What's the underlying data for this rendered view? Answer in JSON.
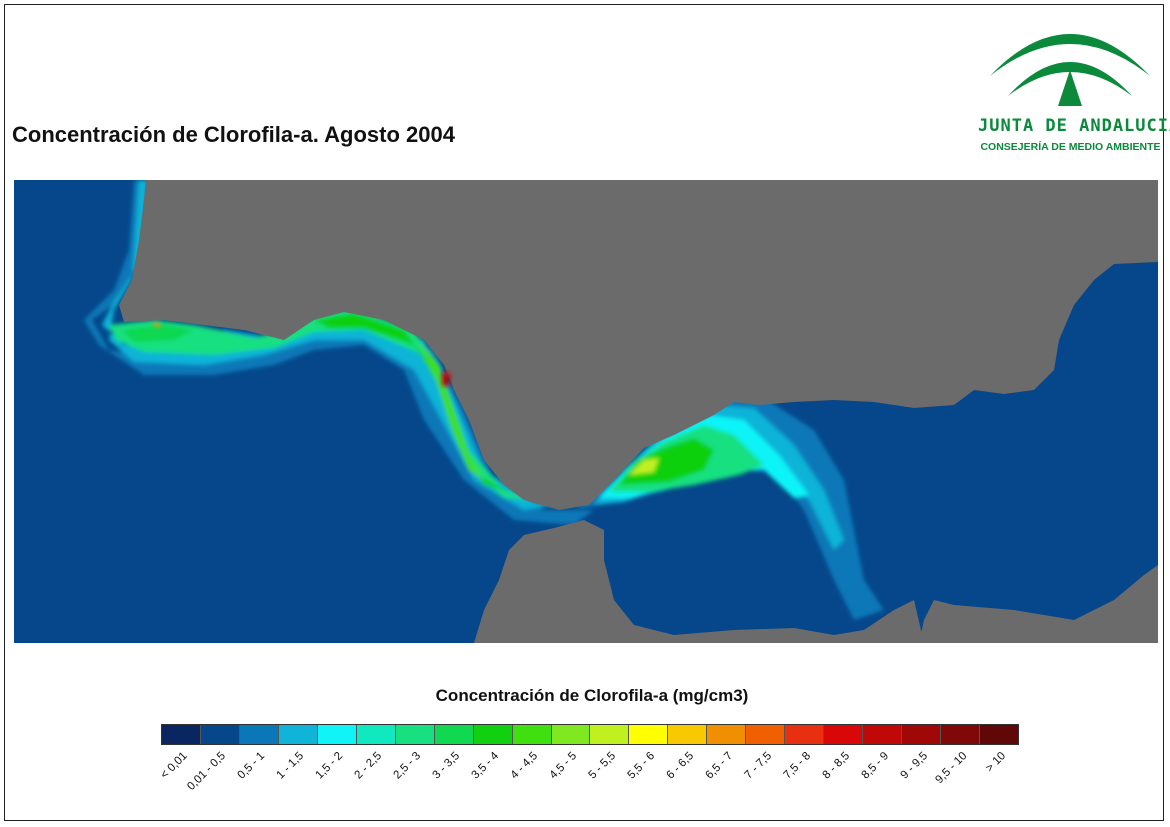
{
  "title": "Concentración de Clorofila-a. Agosto 2004",
  "logo": {
    "name": "JUNTA DE ANDALUCIA",
    "subtitle": "CONSEJERÍA DE MEDIO AMBIENTE",
    "color": "#0a8a3a"
  },
  "map": {
    "sea_color": "#05478a",
    "land_color": "#6b6b6b",
    "icon": "chlorophyll-concentration-map"
  },
  "legend": {
    "title": "Concentración de Clorofila-a (mg/cm3)",
    "classes": [
      {
        "label": "< 0,01",
        "color": "#0a2660"
      },
      {
        "label": "0,01 - 0,5",
        "color": "#05478a"
      },
      {
        "label": "0,5 - 1",
        "color": "#0a78b8"
      },
      {
        "label": "1 - 1,5",
        "color": "#10b4d8"
      },
      {
        "label": "1,5 - 2",
        "color": "#10f4f8"
      },
      {
        "label": "2 - 2,5",
        "color": "#10e8c0"
      },
      {
        "label": "2,5 - 3",
        "color": "#18e080"
      },
      {
        "label": "3 - 3,5",
        "color": "#10d850"
      },
      {
        "label": "3,5 - 4",
        "color": "#10d010"
      },
      {
        "label": "4 - 4,5",
        "color": "#40e010"
      },
      {
        "label": "4,5 - 5",
        "color": "#80e820"
      },
      {
        "label": "5 - 5,5",
        "color": "#c0f020"
      },
      {
        "label": "5,5 - 6",
        "color": "#ffff00"
      },
      {
        "label": "6 - 6,5",
        "color": "#f8c800"
      },
      {
        "label": "6,5 - 7",
        "color": "#f09000"
      },
      {
        "label": "7 - 7,5",
        "color": "#f06000"
      },
      {
        "label": "7,5 - 8",
        "color": "#e83010"
      },
      {
        "label": "8 - 8,5",
        "color": "#d80808"
      },
      {
        "label": "8,5 - 9",
        "color": "#c00808"
      },
      {
        "label": "9 - 9,5",
        "color": "#a00808"
      },
      {
        "label": "9,5 - 10",
        "color": "#800808"
      },
      {
        "label": "> 10",
        "color": "#600808"
      }
    ]
  }
}
